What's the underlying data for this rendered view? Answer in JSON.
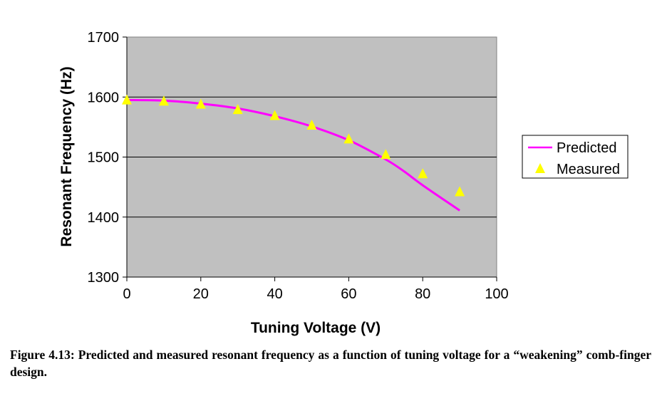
{
  "chart_data": {
    "type": "line",
    "xlabel": "Tuning Voltage (V)",
    "ylabel": "Resonant Frequency (Hz)",
    "xlim": [
      0,
      100
    ],
    "ylim": [
      1300,
      1700
    ],
    "xticks": [
      0,
      20,
      40,
      60,
      80,
      100
    ],
    "yticks": [
      1300,
      1400,
      1500,
      1600,
      1700
    ],
    "grid": "horizontal",
    "plot_background": "#c0c0c0",
    "legend_position": "right",
    "series": [
      {
        "name": "Predicted",
        "style": "line",
        "color": "#ff00ff",
        "x": [
          0,
          10,
          20,
          30,
          40,
          50,
          60,
          70,
          75,
          80,
          90
        ],
        "y": [
          1595,
          1594,
          1589,
          1581,
          1568,
          1551,
          1528,
          1496,
          1476,
          1453,
          1411
        ]
      },
      {
        "name": "Measured",
        "style": "marker",
        "marker": "triangle",
        "color": "#ffff00",
        "x": [
          0,
          10,
          20,
          30,
          40,
          50,
          60,
          70,
          80,
          90
        ],
        "y": [
          1596,
          1594,
          1589,
          1580,
          1570,
          1554,
          1531,
          1505,
          1473,
          1443
        ]
      }
    ]
  },
  "caption": "Figure 4.13: Predicted and measured resonant frequency as a function of tuning voltage for a “weakening” comb-finger design."
}
